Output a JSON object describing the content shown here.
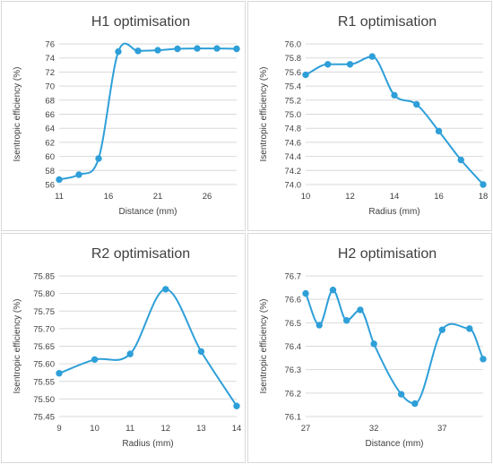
{
  "colors": {
    "series": "#2e9fd8",
    "grid": "#d9d9d9",
    "text": "#404040"
  },
  "chart_data": [
    {
      "type": "line",
      "title": "H1 optimisation",
      "xlabel": "Distance (mm)",
      "ylabel": "Isentropic efficiency (%)",
      "xlim": [
        11,
        29
      ],
      "ylim": [
        56,
        76
      ],
      "xticks": [
        11,
        16,
        21,
        26
      ],
      "yticks": [
        56,
        58,
        60,
        62,
        64,
        66,
        68,
        70,
        72,
        74,
        76
      ],
      "ytick_labels": [
        "56",
        "58",
        "60",
        "62",
        "64",
        "66",
        "68",
        "70",
        "72",
        "74",
        "76"
      ],
      "grid": "horizontal",
      "series": [
        {
          "x": [
            11,
            13,
            15,
            17,
            19,
            21,
            23,
            25,
            27,
            29
          ],
          "y": [
            56.7,
            57.4,
            59.7,
            74.9,
            75.0,
            75.1,
            75.3,
            75.35,
            75.35,
            75.3
          ]
        }
      ]
    },
    {
      "type": "line",
      "title": "R1 optimisation",
      "xlabel": "Radius (mm)",
      "ylabel": "Isentropic efficiency (%)",
      "xlim": [
        10,
        18
      ],
      "ylim": [
        74.0,
        76.0
      ],
      "xticks": [
        10,
        12,
        14,
        16,
        18
      ],
      "yticks": [
        74.0,
        74.2,
        74.4,
        74.6,
        74.8,
        75.0,
        75.2,
        75.4,
        75.6,
        75.8,
        76.0
      ],
      "ytick_labels": [
        "74.0",
        "74.2",
        "74.4",
        "74.6",
        "74.8",
        "75.0",
        "75.2",
        "75.4",
        "75.6",
        "75.8",
        "76.0"
      ],
      "grid": "horizontal",
      "series": [
        {
          "x": [
            10,
            11,
            12,
            13,
            14,
            15,
            16,
            17,
            18
          ],
          "y": [
            75.56,
            75.71,
            75.71,
            75.82,
            75.27,
            75.14,
            74.76,
            74.35,
            74.0
          ]
        }
      ]
    },
    {
      "type": "line",
      "title": "R2 optimisation",
      "xlabel": "Radius (mm)",
      "ylabel": "Isentropic efficiency (%)",
      "xlim": [
        9,
        14
      ],
      "ylim": [
        75.45,
        75.85
      ],
      "xticks": [
        9,
        10,
        11,
        12,
        13,
        14
      ],
      "yticks": [
        75.45,
        75.5,
        75.55,
        75.6,
        75.65,
        75.7,
        75.75,
        75.8,
        75.85
      ],
      "ytick_labels": [
        "75.45",
        "75.50",
        "75.55",
        "75.60",
        "75.65",
        "75.70",
        "75.75",
        "75.80",
        "75.85"
      ],
      "grid": "horizontal",
      "series": [
        {
          "x": [
            9,
            10,
            11,
            12,
            13,
            14
          ],
          "y": [
            75.573,
            75.612,
            75.628,
            75.812,
            75.635,
            75.48
          ]
        }
      ]
    },
    {
      "type": "line",
      "title": "H2 optimisation",
      "xlabel": "Distance (mm)",
      "ylabel": "Isentropic efficiency (%)",
      "xlim": [
        27,
        40
      ],
      "ylim": [
        76.1,
        76.7
      ],
      "xticks": [
        27,
        32,
        37
      ],
      "yticks": [
        76.1,
        76.2,
        76.3,
        76.4,
        76.5,
        76.6,
        76.7
      ],
      "ytick_labels": [
        "76.1",
        "76.2",
        "76.3",
        "76.4",
        "76.5",
        "76.6",
        "76.7"
      ],
      "grid": "horizontal",
      "series": [
        {
          "x": [
            27,
            28,
            29,
            30,
            31,
            32,
            34,
            35,
            37,
            39,
            40
          ],
          "y": [
            76.625,
            76.49,
            76.64,
            76.51,
            76.555,
            76.41,
            76.195,
            76.155,
            76.47,
            76.475,
            76.345
          ]
        }
      ]
    }
  ]
}
